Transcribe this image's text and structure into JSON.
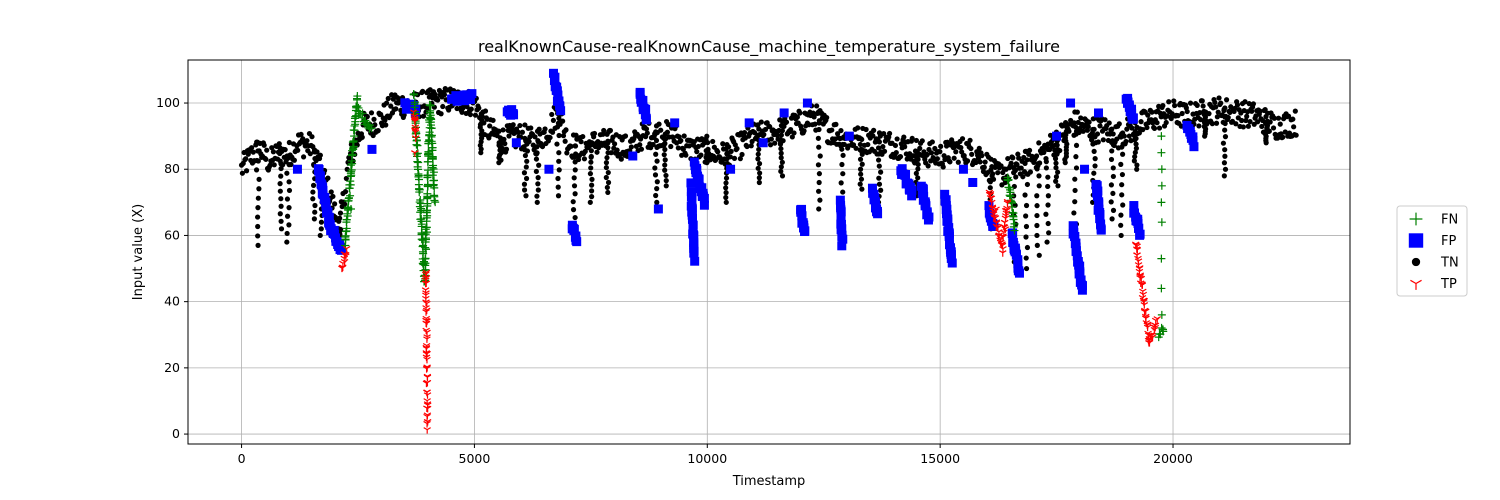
{
  "chart_data": {
    "type": "scatter",
    "title": "realKnownCause-realKnownCause_machine_temperature_system_failure",
    "xlabel": "Timestamp",
    "ylabel": "Input value (X)",
    "xlim": [
      -1150,
      23800
    ],
    "ylim": [
      -3,
      113
    ],
    "xticks": [
      0,
      5000,
      10000,
      15000,
      20000
    ],
    "yticks": [
      0,
      20,
      40,
      60,
      80,
      100
    ],
    "xtick_labels": [
      "0",
      "5000",
      "10000",
      "15000",
      "20000"
    ],
    "ytick_labels": [
      "0",
      "20",
      "40",
      "60",
      "80",
      "100"
    ],
    "grid": true,
    "legend_position": "outside-right",
    "series": [
      {
        "name": "FN",
        "marker": "plus",
        "color": "#008000",
        "segments": [
          {
            "x0": 2220,
            "x1": 2480,
            "y0": 56,
            "y1": 102
          },
          {
            "x0": 2480,
            "x1": 2780,
            "y0": 98,
            "y1": 92
          },
          {
            "x0": 3700,
            "x1": 3930,
            "y0": 103,
            "y1": 46
          },
          {
            "x0": 3930,
            "x1": 4050,
            "y0": 46,
            "y1": 100
          },
          {
            "x0": 4050,
            "x1": 4150,
            "y0": 98,
            "y1": 70
          },
          {
            "x0": 16450,
            "x1": 16600,
            "y0": 78,
            "y1": 62
          },
          {
            "x0": 19700,
            "x1": 19800,
            "y0": 30,
            "y1": 32
          }
        ],
        "points": [
          [
            19750,
            90
          ],
          [
            19750,
            85
          ],
          [
            19760,
            80
          ],
          [
            19760,
            75
          ],
          [
            19750,
            70
          ],
          [
            19760,
            64
          ],
          [
            19750,
            53
          ],
          [
            19750,
            44
          ],
          [
            19760,
            36
          ],
          [
            3980,
            61
          ],
          [
            2350,
            68
          ],
          [
            2330,
            72
          ]
        ]
      },
      {
        "name": "FP",
        "marker": "square",
        "color": "#0000ff",
        "segments": [
          {
            "x0": 1650,
            "x1": 1900,
            "y0": 80,
            "y1": 63
          },
          {
            "x0": 1900,
            "x1": 2150,
            "y0": 63,
            "y1": 56
          },
          {
            "x0": 3500,
            "x1": 3750,
            "y0": 99,
            "y1": 98
          },
          {
            "x0": 4500,
            "x1": 4950,
            "y0": 101,
            "y1": 102
          },
          {
            "x0": 5700,
            "x1": 5850,
            "y0": 97,
            "y1": 97
          },
          {
            "x0": 6700,
            "x1": 6850,
            "y0": 108,
            "y1": 98
          },
          {
            "x0": 7100,
            "x1": 7200,
            "y0": 63,
            "y1": 59
          },
          {
            "x0": 8550,
            "x1": 8700,
            "y0": 102,
            "y1": 96
          },
          {
            "x0": 9650,
            "x1": 9720,
            "y0": 75,
            "y1": 53
          },
          {
            "x0": 9720,
            "x1": 9950,
            "y0": 82,
            "y1": 70
          },
          {
            "x0": 12000,
            "x1": 12100,
            "y0": 68,
            "y1": 60
          },
          {
            "x0": 12850,
            "x1": 12900,
            "y0": 70,
            "y1": 58
          },
          {
            "x0": 13550,
            "x1": 13650,
            "y0": 74,
            "y1": 66
          },
          {
            "x0": 14150,
            "x1": 14400,
            "y0": 80,
            "y1": 73
          },
          {
            "x0": 14600,
            "x1": 14750,
            "y0": 75,
            "y1": 65
          },
          {
            "x0": 15100,
            "x1": 15250,
            "y0": 72,
            "y1": 52
          },
          {
            "x0": 16050,
            "x1": 16150,
            "y0": 68,
            "y1": 62
          },
          {
            "x0": 16550,
            "x1": 16700,
            "y0": 60,
            "y1": 49
          },
          {
            "x0": 17850,
            "x1": 18050,
            "y0": 62,
            "y1": 44
          },
          {
            "x0": 18350,
            "x1": 18450,
            "y0": 76,
            "y1": 62
          },
          {
            "x0": 19000,
            "x1": 19150,
            "y0": 102,
            "y1": 95
          },
          {
            "x0": 19150,
            "x1": 19300,
            "y0": 68,
            "y1": 60
          },
          {
            "x0": 20300,
            "x1": 20450,
            "y0": 92,
            "y1": 88
          }
        ],
        "points": [
          [
            1200,
            80
          ],
          [
            2800,
            86
          ],
          [
            5900,
            88
          ],
          [
            6600,
            80
          ],
          [
            8400,
            84
          ],
          [
            8950,
            68
          ],
          [
            9300,
            94
          ],
          [
            10500,
            80
          ],
          [
            10900,
            94
          ],
          [
            11200,
            88
          ],
          [
            11650,
            97
          ],
          [
            12150,
            100
          ],
          [
            13050,
            90
          ],
          [
            15500,
            80
          ],
          [
            15700,
            76
          ],
          [
            17500,
            90
          ],
          [
            17800,
            100
          ],
          [
            18100,
            80
          ],
          [
            18400,
            97
          ]
        ]
      },
      {
        "name": "TN",
        "marker": "circle",
        "color": "#000000",
        "profile": [
          [
            0,
            80
          ],
          [
            200,
            84
          ],
          [
            400,
            86
          ],
          [
            600,
            82
          ],
          [
            800,
            85
          ],
          [
            1000,
            84
          ],
          [
            1200,
            88
          ],
          [
            1500,
            87
          ],
          [
            1700,
            80
          ],
          [
            1900,
            72
          ],
          [
            2100,
            62
          ],
          [
            2300,
            82
          ],
          [
            2600,
            93
          ],
          [
            3000,
            95
          ],
          [
            3300,
            100
          ],
          [
            3600,
            99
          ],
          [
            4000,
            100
          ],
          [
            4500,
            101
          ],
          [
            5000,
            100
          ],
          [
            5300,
            92
          ],
          [
            5600,
            89
          ],
          [
            6000,
            90
          ],
          [
            6300,
            88
          ],
          [
            6600,
            92
          ],
          [
            6800,
            98
          ],
          [
            7000,
            88
          ],
          [
            7300,
            86
          ],
          [
            7600,
            88
          ],
          [
            8000,
            88
          ],
          [
            8300,
            86
          ],
          [
            8600,
            90
          ],
          [
            9000,
            91
          ],
          [
            9300,
            90
          ],
          [
            9600,
            86
          ],
          [
            10000,
            86
          ],
          [
            10300,
            84
          ],
          [
            10600,
            86
          ],
          [
            11000,
            90
          ],
          [
            11400,
            91
          ],
          [
            11700,
            92
          ],
          [
            12000,
            94
          ],
          [
            12300,
            96
          ],
          [
            12600,
            92
          ],
          [
            13000,
            89
          ],
          [
            13400,
            89
          ],
          [
            13800,
            88
          ],
          [
            14200,
            87
          ],
          [
            14600,
            85
          ],
          [
            15000,
            84
          ],
          [
            15400,
            86
          ],
          [
            15800,
            85
          ],
          [
            16200,
            78
          ],
          [
            16500,
            80
          ],
          [
            16900,
            82
          ],
          [
            17300,
            86
          ],
          [
            17600,
            90
          ],
          [
            17900,
            94
          ],
          [
            18200,
            92
          ],
          [
            18500,
            92
          ],
          [
            18800,
            90
          ],
          [
            19100,
            92
          ],
          [
            19400,
            94
          ],
          [
            19700,
            96
          ],
          [
            20000,
            97
          ],
          [
            20300,
            96
          ],
          [
            20600,
            97
          ],
          [
            21000,
            98
          ],
          [
            21400,
            97
          ],
          [
            21800,
            96
          ],
          [
            22200,
            93
          ],
          [
            22600,
            94
          ]
        ],
        "dips": [
          [
            350,
            57
          ],
          [
            850,
            62
          ],
          [
            1000,
            58
          ],
          [
            1550,
            65
          ],
          [
            1700,
            60
          ],
          [
            2100,
            60
          ],
          [
            5150,
            85
          ],
          [
            5550,
            82
          ],
          [
            6100,
            72
          ],
          [
            6350,
            70
          ],
          [
            6800,
            72
          ],
          [
            7150,
            63
          ],
          [
            7500,
            70
          ],
          [
            7850,
            73
          ],
          [
            8900,
            70
          ],
          [
            9100,
            75
          ],
          [
            10000,
            82
          ],
          [
            10400,
            70
          ],
          [
            11100,
            76
          ],
          [
            11600,
            78
          ],
          [
            12400,
            68
          ],
          [
            12900,
            62
          ],
          [
            13300,
            74
          ],
          [
            13700,
            70
          ],
          [
            14500,
            72
          ],
          [
            16100,
            62
          ],
          [
            16600,
            52
          ],
          [
            16850,
            50
          ],
          [
            17100,
            54
          ],
          [
            17300,
            58
          ],
          [
            17500,
            75
          ],
          [
            17700,
            82
          ],
          [
            17900,
            60
          ],
          [
            18300,
            70
          ],
          [
            18700,
            65
          ],
          [
            18900,
            60
          ],
          [
            19200,
            80
          ],
          [
            20700,
            90
          ],
          [
            21100,
            78
          ],
          [
            22000,
            88
          ]
        ]
      },
      {
        "name": "TP",
        "marker": "tri_down",
        "color": "#ff0000",
        "segments": [
          {
            "x0": 2150,
            "x1": 2250,
            "y0": 50,
            "y1": 55
          },
          {
            "x0": 3700,
            "x1": 3740,
            "y0": 98,
            "y1": 90
          },
          {
            "x0": 3960,
            "x1": 3990,
            "y0": 50,
            "y1": 2
          },
          {
            "x0": 16050,
            "x1": 16350,
            "y0": 74,
            "y1": 55
          },
          {
            "x0": 16350,
            "x1": 16450,
            "y0": 60,
            "y1": 70
          },
          {
            "x0": 19200,
            "x1": 19500,
            "y0": 58,
            "y1": 27
          },
          {
            "x0": 19500,
            "x1": 19650,
            "y0": 28,
            "y1": 35
          }
        ],
        "points": [
          [
            3720,
            95
          ],
          [
            3720,
            85
          ],
          [
            16200,
            68
          ],
          [
            16300,
            58
          ],
          [
            16400,
            62
          ]
        ]
      }
    ]
  }
}
